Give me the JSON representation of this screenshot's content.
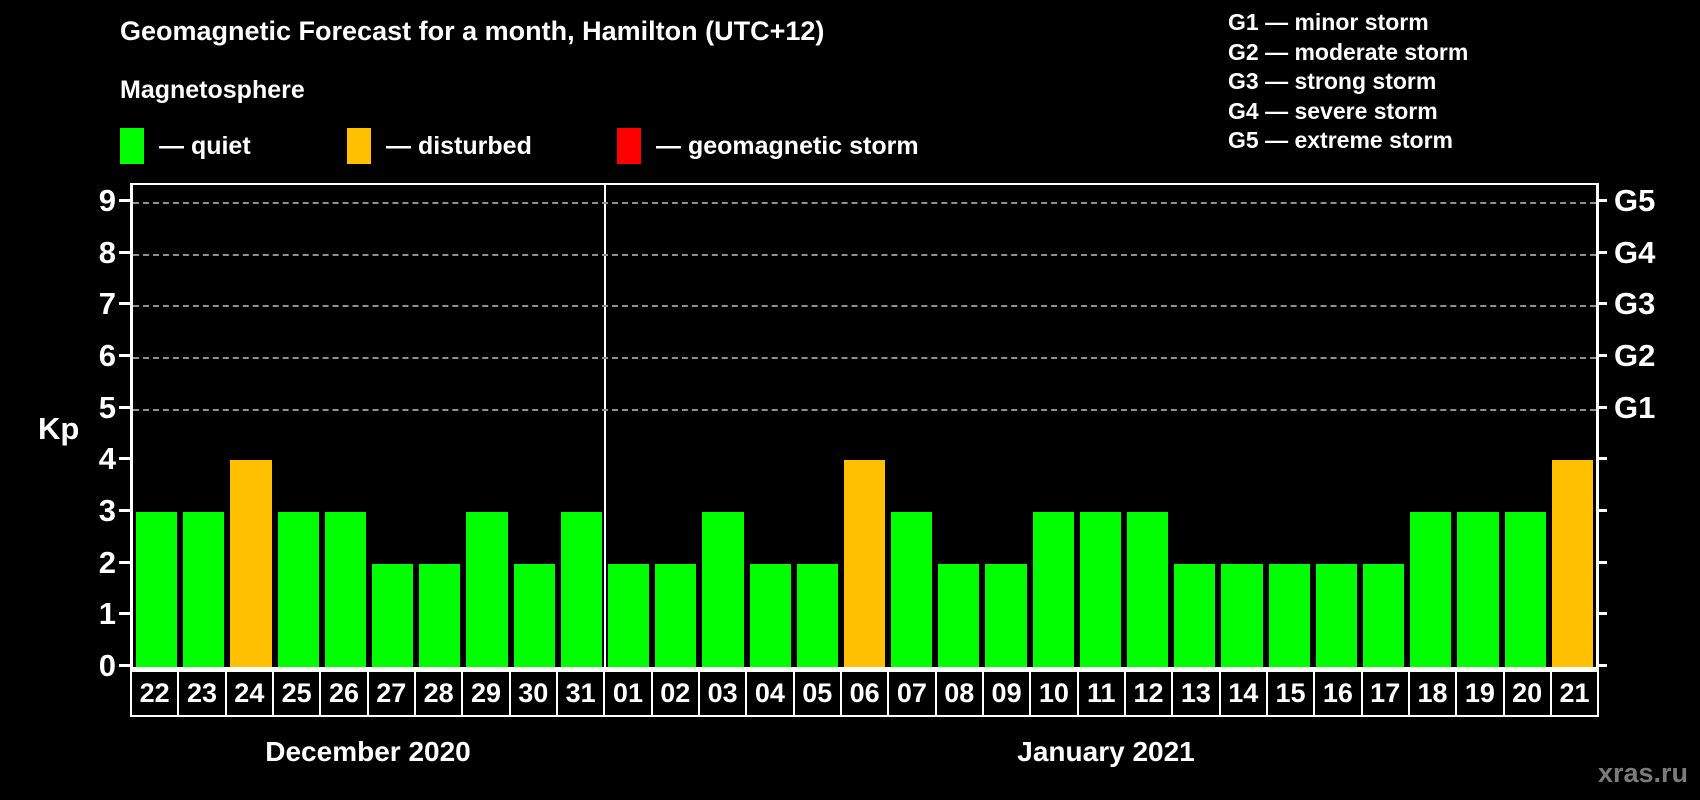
{
  "header": {
    "title": "Geomagnetic Forecast for a month, Hamilton (UTC+12)",
    "subtitle": "Magnetosphere"
  },
  "magnetosphere_legend": [
    {
      "label": "— quiet",
      "color": "#00ff00"
    },
    {
      "label": "— disturbed",
      "color": "#ffc000"
    },
    {
      "label": "— geomagnetic storm",
      "color": "#ff0000"
    }
  ],
  "storm_scale_legend": [
    "G1 — minor storm",
    "G2 — moderate storm",
    "G3 — strong storm",
    "G4 — severe storm",
    "G5 — extreme storm"
  ],
  "watermark": {
    "text": "xras.ru",
    "color": "#7b7b7b"
  },
  "chart_data": {
    "type": "bar",
    "title": "Geomagnetic Forecast for a month, Hamilton (UTC+12)",
    "ylabel": "Kp",
    "ylim": [
      0,
      9.35
    ],
    "yticks": [
      0,
      1,
      2,
      3,
      4,
      5,
      6,
      7,
      8,
      9
    ],
    "grid_levels": [
      5,
      6,
      7,
      8,
      9
    ],
    "grid_style": "dashed",
    "right_axis_labels": [
      {
        "level": 5,
        "label": "G1"
      },
      {
        "level": 6,
        "label": "G2"
      },
      {
        "level": 7,
        "label": "G3"
      },
      {
        "level": 8,
        "label": "G4"
      },
      {
        "level": 9,
        "label": "G5"
      }
    ],
    "colors": {
      "quiet": "#00ff00",
      "disturbed": "#ffc000",
      "storm": "#ff0000"
    },
    "thresholds": {
      "disturbed_min": 4,
      "storm_min": 5
    },
    "groups": [
      {
        "label": "December 2020",
        "categories": [
          "22",
          "23",
          "24",
          "25",
          "26",
          "27",
          "28",
          "29",
          "30",
          "31"
        ],
        "values": [
          3,
          3,
          4,
          3,
          3,
          2,
          2,
          3,
          2,
          3
        ]
      },
      {
        "label": "January 2021",
        "categories": [
          "01",
          "02",
          "03",
          "04",
          "05",
          "06",
          "07",
          "08",
          "09",
          "10",
          "11",
          "12",
          "13",
          "14",
          "15",
          "16",
          "17",
          "18",
          "19",
          "20",
          "21"
        ],
        "values": [
          2,
          2,
          3,
          2,
          2,
          4,
          3,
          2,
          2,
          3,
          3,
          3,
          2,
          2,
          2,
          2,
          2,
          3,
          3,
          3,
          4
        ]
      }
    ]
  }
}
